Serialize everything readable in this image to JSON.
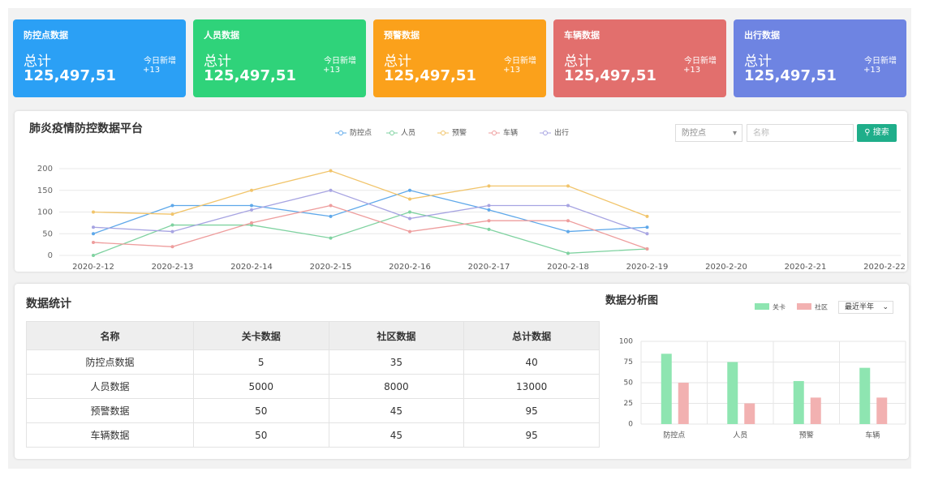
{
  "cards": [
    {
      "title": "防控点数据",
      "total_label": "总计",
      "total": "125,497,51",
      "new_label": "今日新增",
      "new": "+13",
      "color": "#2ba0f5"
    },
    {
      "title": "人员数据",
      "total_label": "总计",
      "total": "125,497,51",
      "new_label": "今日新增",
      "new": "+13",
      "color": "#2fd37a"
    },
    {
      "title": "预警数据",
      "total_label": "总计",
      "total": "125,497,51",
      "new_label": "今日新增",
      "new": "+13",
      "color": "#fba11b"
    },
    {
      "title": "车辆数据",
      "total_label": "总计",
      "total": "125,497,51",
      "new_label": "今日新增",
      "new": "+13",
      "color": "#e26f6d"
    },
    {
      "title": "出行数据",
      "total_label": "总计",
      "total": "125,497,51",
      "new_label": "今日新增",
      "new": "+13",
      "color": "#6e84e2"
    }
  ],
  "search": {
    "select": "防控点",
    "placeholder": "名称",
    "button": "搜索"
  },
  "chart_data": [
    {
      "type": "line",
      "title": "肺炎疫情防控数据平台",
      "categories": [
        "2020-2-12",
        "2020-2-13",
        "2020-2-14",
        "2020-2-15",
        "2020-2-16",
        "2020-2-17",
        "2020-2-18",
        "2020-2-19",
        "2020-2-20",
        "2020-2-21",
        "2020-2-22"
      ],
      "series": [
        {
          "name": "防控点",
          "color": "#5ea8ea",
          "values": [
            50,
            115,
            115,
            90,
            150,
            105,
            55,
            65,
            null,
            null,
            null
          ]
        },
        {
          "name": "人员",
          "color": "#7fd2a0",
          "values": [
            0,
            70,
            70,
            40,
            100,
            60,
            5,
            15,
            null,
            null,
            null
          ]
        },
        {
          "name": "预警",
          "color": "#f1c46a",
          "values": [
            100,
            95,
            150,
            195,
            130,
            160,
            160,
            90,
            null,
            null,
            null
          ]
        },
        {
          "name": "车辆",
          "color": "#ee9d9d",
          "values": [
            30,
            20,
            75,
            115,
            55,
            80,
            80,
            15,
            null,
            null,
            null
          ]
        },
        {
          "name": "出行",
          "color": "#a7a4e2",
          "values": [
            65,
            55,
            105,
            150,
            85,
            115,
            115,
            50,
            null,
            null,
            null
          ]
        }
      ],
      "ylim": [
        0,
        200
      ],
      "yticks": [
        0,
        50,
        100,
        150,
        200
      ],
      "grid": true
    },
    {
      "type": "bar",
      "title": "数据分析图",
      "select": "最近半年",
      "categories": [
        "防控点",
        "人员",
        "预警",
        "车辆"
      ],
      "series": [
        {
          "name": "关卡",
          "color": "#8ee5b1",
          "values": [
            85,
            75,
            52,
            68
          ]
        },
        {
          "name": "社区",
          "color": "#f2b1b1",
          "values": [
            50,
            25,
            32,
            32
          ]
        }
      ],
      "ylim": [
        0,
        100
      ],
      "yticks": [
        0,
        25,
        50,
        75,
        100
      ],
      "grid": true
    }
  ],
  "table": {
    "title": "数据统计",
    "header": [
      "名称",
      "关卡数据",
      "社区数据",
      "总计数据"
    ],
    "rows": [
      [
        "防控点数据",
        "5",
        "35",
        "40"
      ],
      [
        "人员数据",
        "5000",
        "8000",
        "13000"
      ],
      [
        "预警数据",
        "50",
        "45",
        "95"
      ],
      [
        "车辆数据",
        "50",
        "45",
        "95"
      ]
    ]
  }
}
